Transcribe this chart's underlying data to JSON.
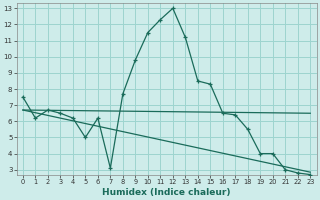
{
  "xlabel": "Humidex (Indice chaleur)",
  "bg_color": "#ceecea",
  "grid_color": "#9dd4cf",
  "line_color": "#1a6b5a",
  "xlim": [
    -0.5,
    23.5
  ],
  "ylim": [
    2.7,
    13.3
  ],
  "xticks": [
    0,
    1,
    2,
    3,
    4,
    5,
    6,
    7,
    8,
    9,
    10,
    11,
    12,
    13,
    14,
    15,
    16,
    17,
    18,
    19,
    20,
    21,
    22,
    23
  ],
  "yticks": [
    3,
    4,
    5,
    6,
    7,
    8,
    9,
    10,
    11,
    12,
    13
  ],
  "line1_x": [
    0,
    1,
    2,
    3,
    4,
    5,
    6,
    7,
    8,
    9,
    10,
    11,
    12,
    13,
    14,
    15,
    16,
    17,
    18,
    19,
    20,
    21,
    22,
    23
  ],
  "line1_y": [
    7.5,
    6.2,
    6.7,
    6.5,
    6.2,
    5.0,
    6.2,
    3.1,
    7.7,
    9.8,
    11.5,
    12.3,
    13.0,
    11.2,
    8.5,
    8.3,
    6.5,
    6.4,
    5.5,
    4.0,
    4.0,
    3.0,
    2.8,
    2.7
  ],
  "line2_x": [
    0,
    23
  ],
  "line2_y": [
    6.7,
    6.5
  ],
  "line3_x": [
    0,
    23
  ],
  "line3_y": [
    6.7,
    2.85
  ]
}
